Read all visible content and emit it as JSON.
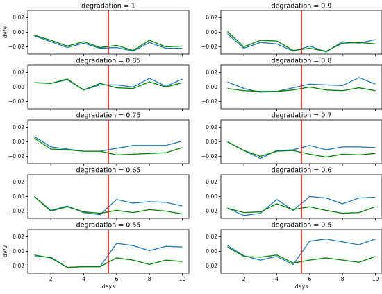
{
  "chart_data": {
    "type": "line",
    "x": [
      1,
      2,
      3,
      4,
      5,
      6,
      7,
      8,
      9,
      10
    ],
    "xlabel": "days",
    "ylabel": "dv/v",
    "xlim": [
      0.6,
      10.4
    ],
    "ylim": [
      -0.03,
      0.03
    ],
    "xticks": [
      2,
      4,
      6,
      8,
      10
    ],
    "yticks": [
      -0.02,
      0.0,
      0.02
    ],
    "ytick_labels": [
      "−0.02",
      "0.00",
      "0.02"
    ],
    "event_day": 5.5,
    "colors": {
      "blue": "#1f77b4",
      "green": "#008000",
      "event": "#ff0000"
    },
    "panels": [
      {
        "title": "degradation = 1",
        "series": [
          {
            "color": "#1f77b4",
            "values": [
              -0.005,
              -0.013,
              -0.021,
              -0.015,
              -0.022,
              -0.021,
              -0.026,
              -0.014,
              -0.022,
              -0.022
            ]
          },
          {
            "color": "#008000",
            "values": [
              -0.004,
              -0.011,
              -0.019,
              -0.013,
              -0.021,
              -0.018,
              -0.025,
              -0.011,
              -0.02,
              -0.019
            ]
          }
        ]
      },
      {
        "title": "degradation = 0.9",
        "series": [
          {
            "color": "#1f77b4",
            "values": [
              -0.002,
              -0.022,
              -0.014,
              -0.016,
              -0.026,
              -0.019,
              -0.027,
              -0.013,
              -0.015,
              -0.01
            ]
          },
          {
            "color": "#008000",
            "values": [
              0.001,
              -0.02,
              -0.011,
              -0.012,
              -0.025,
              -0.022,
              -0.026,
              -0.015,
              -0.014,
              -0.016
            ]
          }
        ]
      },
      {
        "title": "degradation = 0.85",
        "series": [
          {
            "color": "#1f77b4",
            "values": [
              0.006,
              0.005,
              0.01,
              -0.004,
              0.003,
              0.003,
              0.0,
              0.012,
              0.001,
              0.011
            ]
          },
          {
            "color": "#008000",
            "values": [
              0.006,
              0.005,
              0.011,
              -0.004,
              0.005,
              -0.001,
              -0.002,
              0.007,
              0.0,
              0.006
            ]
          }
        ]
      },
      {
        "title": "degradation = 0.8",
        "series": [
          {
            "color": "#1f77b4",
            "values": [
              0.007,
              -0.002,
              -0.007,
              -0.006,
              -0.001,
              0.004,
              0.003,
              0.002,
              0.013,
              0.004
            ]
          },
          {
            "color": "#008000",
            "values": [
              -0.002,
              -0.005,
              -0.006,
              -0.006,
              -0.004,
              0.0,
              -0.004,
              -0.005,
              -0.001,
              -0.005
            ]
          }
        ]
      },
      {
        "title": "degradation = 0.75",
        "series": [
          {
            "color": "#1f77b4",
            "values": [
              0.007,
              -0.007,
              -0.01,
              -0.013,
              -0.013,
              -0.009,
              -0.005,
              -0.005,
              -0.005,
              0.001
            ]
          },
          {
            "color": "#008000",
            "values": [
              0.005,
              -0.01,
              -0.011,
              -0.013,
              -0.013,
              -0.018,
              -0.017,
              -0.016,
              -0.015,
              -0.008
            ]
          }
        ]
      },
      {
        "title": "degradation = 0.7",
        "series": [
          {
            "color": "#1f77b4",
            "values": [
              0.0,
              -0.012,
              -0.023,
              -0.012,
              -0.011,
              -0.005,
              -0.011,
              -0.007,
              -0.007,
              -0.008
            ]
          },
          {
            "color": "#008000",
            "values": [
              0.0,
              -0.012,
              -0.02,
              -0.013,
              -0.012,
              -0.017,
              -0.021,
              -0.017,
              -0.018,
              -0.016
            ]
          }
        ]
      },
      {
        "title": "degradation = 0.65",
        "series": [
          {
            "color": "#1f77b4",
            "values": [
              0.0,
              -0.019,
              -0.013,
              -0.022,
              -0.025,
              -0.004,
              -0.009,
              -0.007,
              -0.008,
              -0.013
            ]
          },
          {
            "color": "#008000",
            "values": [
              0.0,
              -0.02,
              -0.014,
              -0.021,
              -0.023,
              -0.019,
              -0.022,
              -0.018,
              -0.02,
              -0.024
            ]
          }
        ]
      },
      {
        "title": "degradation = 0.6",
        "series": [
          {
            "color": "#1f77b4",
            "values": [
              -0.016,
              -0.026,
              -0.023,
              -0.004,
              -0.019,
              0.0,
              -0.002,
              -0.01,
              -0.002,
              -0.001
            ]
          },
          {
            "color": "#008000",
            "values": [
              -0.016,
              -0.022,
              -0.021,
              -0.01,
              -0.018,
              -0.014,
              -0.019,
              -0.023,
              -0.022,
              -0.014
            ]
          }
        ]
      },
      {
        "title": "degradation = 0.55",
        "series": [
          {
            "color": "#1f77b4",
            "values": [
              -0.007,
              -0.008,
              -0.022,
              -0.021,
              -0.021,
              0.011,
              0.008,
              0.001,
              0.007,
              0.006
            ]
          },
          {
            "color": "#008000",
            "values": [
              -0.005,
              -0.009,
              -0.022,
              -0.021,
              -0.021,
              -0.009,
              -0.012,
              -0.018,
              -0.012,
              -0.014
            ]
          }
        ]
      },
      {
        "title": "degradation = 0.5",
        "series": [
          {
            "color": "#1f77b4",
            "values": [
              0.008,
              -0.006,
              -0.012,
              -0.007,
              -0.018,
              0.014,
              0.017,
              0.013,
              0.009,
              0.017
            ]
          },
          {
            "color": "#008000",
            "values": [
              0.006,
              -0.007,
              -0.008,
              -0.005,
              -0.016,
              -0.012,
              -0.009,
              -0.012,
              -0.015,
              -0.007
            ]
          }
        ]
      }
    ]
  }
}
